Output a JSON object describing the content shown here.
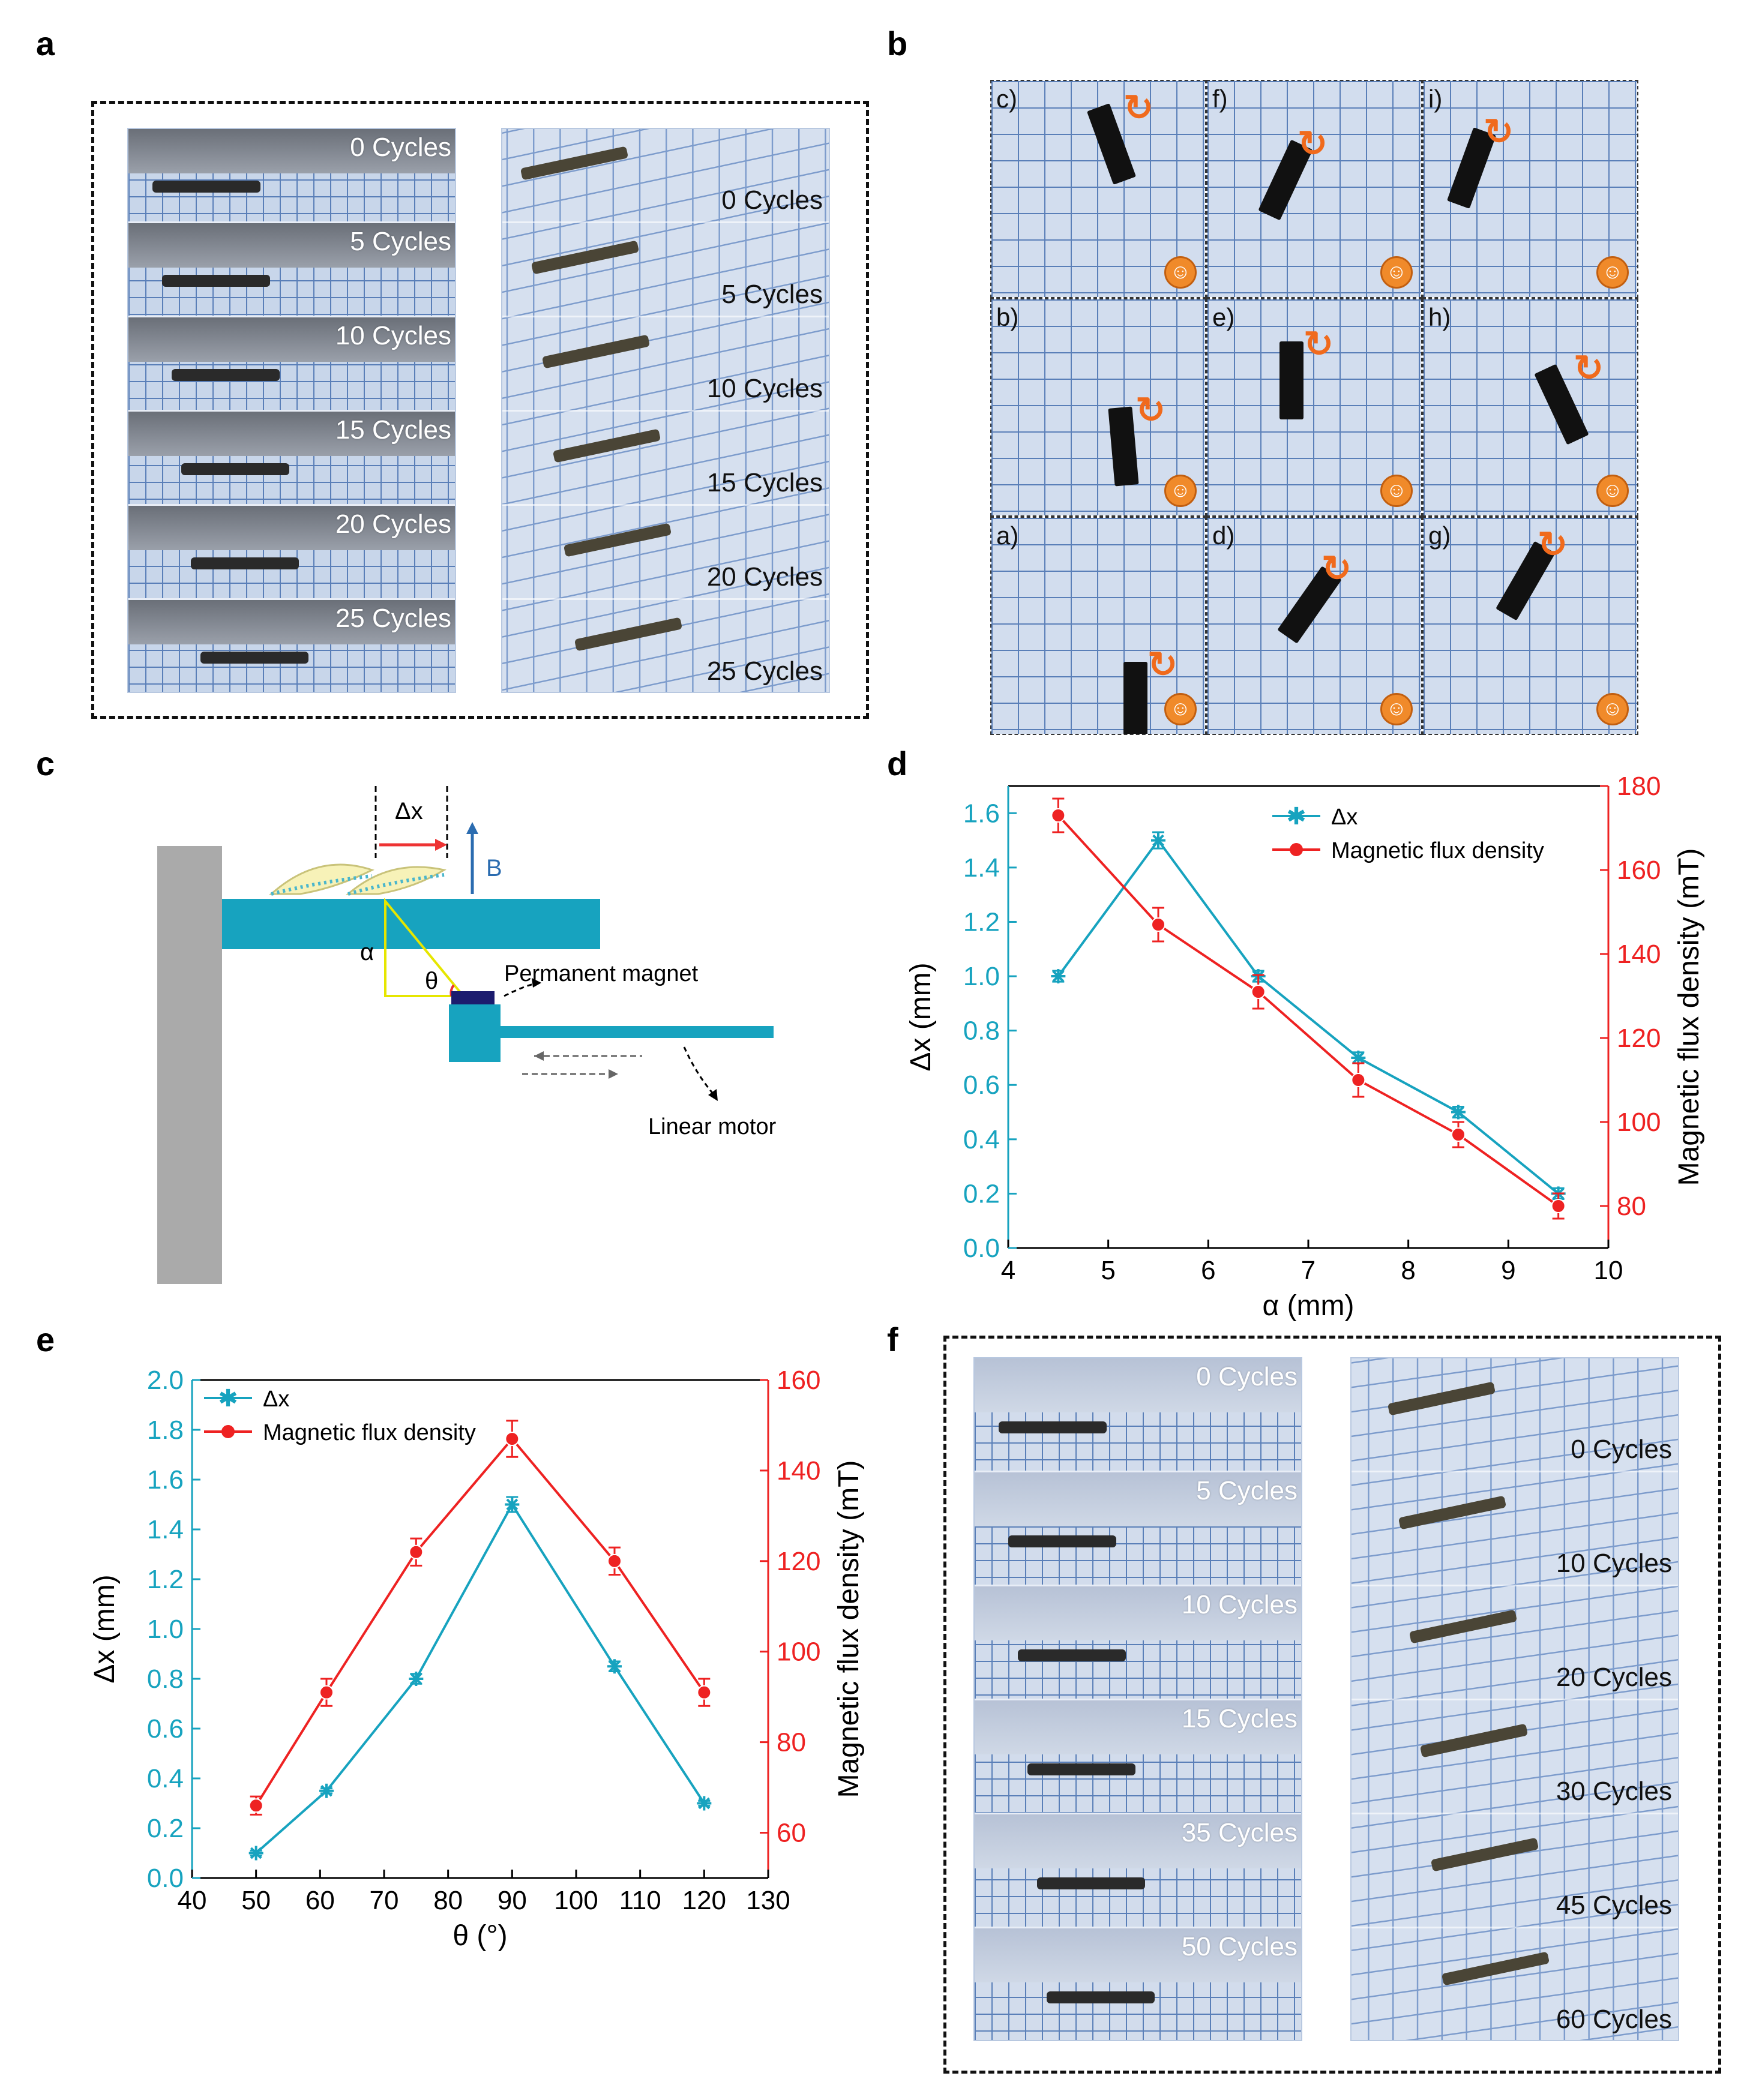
{
  "panels": {
    "a": "a",
    "b": "b",
    "c": "c",
    "d": "d",
    "e": "e",
    "f": "f"
  },
  "panel_a": {
    "left_labels": [
      "0 Cycles",
      "5 Cycles",
      "10 Cycles",
      "15 Cycles",
      "20 Cycles",
      "25 Cycles"
    ],
    "right_labels": [
      "0 Cycles",
      "5 Cycles",
      "10 Cycles",
      "15 Cycles",
      "20 Cycles",
      "25 Cycles"
    ]
  },
  "panel_b": {
    "cells": [
      "c)",
      "f)",
      "i)",
      "b)",
      "e)",
      "h)",
      "a)",
      "d)",
      "g)"
    ],
    "face_glyph": "☺"
  },
  "panel_c": {
    "dx_label": "Δx",
    "b_label": "B",
    "alpha_label": "α",
    "theta_label": "θ",
    "magnet_label": "Permanent magnet",
    "motor_label": "Linear motor",
    "colors": {
      "wall": "#aaaaaa",
      "platform": "#17a3bf",
      "triangle": "#e6e600",
      "magnet": "#1c1c6e",
      "arrow": "#ee3333",
      "field": "#2b6cb0"
    }
  },
  "panel_f": {
    "left_labels": [
      "0 Cycles",
      "5 Cycles",
      "10 Cycles",
      "15 Cycles",
      "35 Cycles",
      "50 Cycles"
    ],
    "right_labels": [
      "0 Cycles",
      "10 Cycles",
      "20 Cycles",
      "30 Cycles",
      "45 Cycles",
      "60 Cycles"
    ]
  },
  "chart_data": [
    {
      "id": "d",
      "type": "line",
      "xlabel": "α (mm)",
      "ylabel": "Δx (mm)",
      "y2label": "Magnetic flux density (mT)",
      "xlim": [
        4,
        10
      ],
      "ylim": [
        0,
        1.7
      ],
      "y2lim": [
        70,
        180
      ],
      "xticks": [
        "4",
        "5",
        "6",
        "7",
        "8",
        "9",
        "10"
      ],
      "yticks": [
        "0.0",
        "0.2",
        "0.4",
        "0.6",
        "0.8",
        "1.0",
        "1.2",
        "1.4",
        "1.6"
      ],
      "y2ticks": [
        "80",
        "100",
        "120",
        "140",
        "160",
        "180"
      ],
      "legend": [
        "Δx",
        "Magnetic flux density"
      ],
      "series": [
        {
          "name": "Δx",
          "axis": "left",
          "color": "#17a3bf",
          "marker": "star",
          "x": [
            4.5,
            5.5,
            6.5,
            7.5,
            8.5,
            9.5
          ],
          "values": [
            1.0,
            1.5,
            1.0,
            0.7,
            0.5,
            0.2
          ],
          "err": [
            0.02,
            0.03,
            0.02,
            0.02,
            0.02,
            0.02
          ]
        },
        {
          "name": "Magnetic flux density",
          "axis": "right",
          "color": "#ee2222",
          "marker": "circle",
          "x": [
            4.5,
            5.5,
            6.5,
            7.5,
            8.5,
            9.5
          ],
          "values": [
            173,
            147,
            131,
            110,
            97,
            80
          ],
          "err": [
            4,
            4,
            4,
            4,
            3,
            3
          ]
        }
      ]
    },
    {
      "id": "e",
      "type": "line",
      "xlabel": "θ (°)",
      "ylabel": "Δx (mm)",
      "y2label": "Magnetic flux density (mT)",
      "xlim": [
        40,
        130
      ],
      "ylim": [
        0,
        2.0
      ],
      "y2lim": [
        50,
        160
      ],
      "xticks": [
        "40",
        "50",
        "60",
        "70",
        "80",
        "90",
        "100",
        "110",
        "120",
        "130"
      ],
      "yticks": [
        "0.0",
        "0.2",
        "0.4",
        "0.6",
        "0.8",
        "1.0",
        "1.2",
        "1.4",
        "1.6",
        "1.8",
        "2.0"
      ],
      "y2ticks": [
        "60",
        "80",
        "100",
        "120",
        "140",
        "160"
      ],
      "legend": [
        "Δx",
        "Magnetic flux density"
      ],
      "series": [
        {
          "name": "Δx",
          "axis": "left",
          "color": "#17a3bf",
          "marker": "star",
          "x": [
            50,
            61,
            75,
            90,
            106,
            120
          ],
          "values": [
            0.1,
            0.35,
            0.8,
            1.5,
            0.85,
            0.3
          ],
          "err": [
            0.01,
            0.01,
            0.02,
            0.03,
            0.02,
            0.01
          ]
        },
        {
          "name": "Magnetic flux density",
          "axis": "right",
          "color": "#ee2222",
          "marker": "circle",
          "x": [
            50,
            61,
            75,
            90,
            106,
            120
          ],
          "values": [
            66,
            91,
            122,
            147,
            120,
            91
          ],
          "err": [
            2,
            3,
            3,
            4,
            3,
            3
          ]
        }
      ]
    }
  ]
}
